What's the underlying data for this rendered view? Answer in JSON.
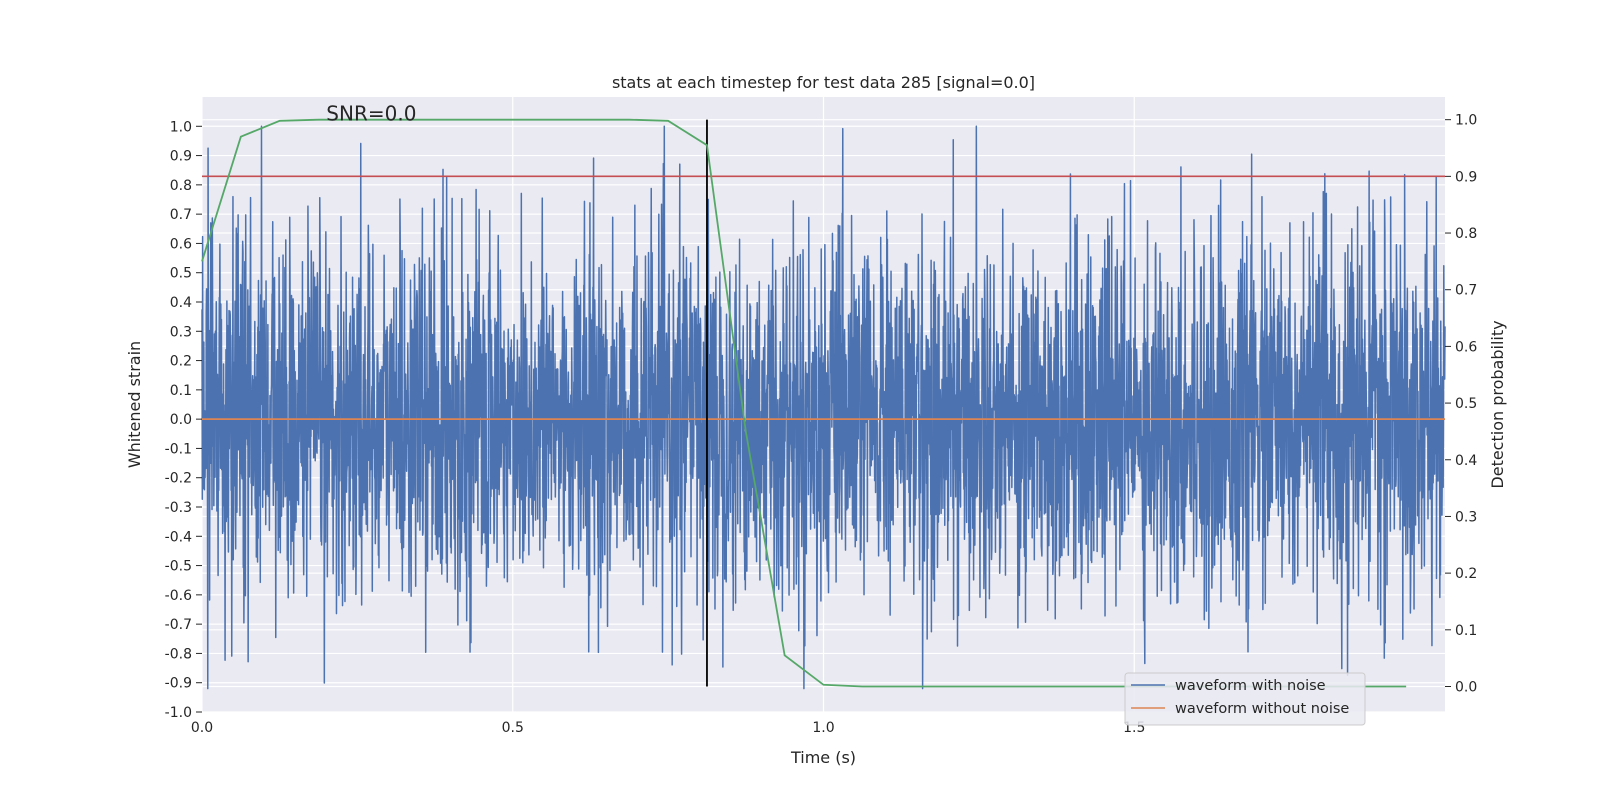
{
  "chart_data": {
    "type": "line",
    "title": "stats at each timestep for test data 285 [signal=0.0]",
    "xlabel": "Time (s)",
    "ylabel": "Whitened strain",
    "y2label": "Detection probability",
    "xlim": [
      0.0,
      2.0
    ],
    "ylim": [
      -1.0,
      1.1
    ],
    "y2lim": [
      -0.045,
      1.04
    ],
    "xticks": [
      "0.0",
      "0.5",
      "1.0",
      "1.5"
    ],
    "xtick_values": [
      0.0,
      0.5,
      1.0,
      1.5
    ],
    "yticks": [
      "1.0",
      "0.9",
      "0.8",
      "0.7",
      "0.6",
      "0.5",
      "0.4",
      "0.3",
      "0.2",
      "0.1",
      "0.0",
      "-0.1",
      "-0.2",
      "-0.3",
      "-0.4",
      "-0.5",
      "-0.6",
      "-0.7",
      "-0.8",
      "-0.9",
      "-1.0"
    ],
    "ytick_values": [
      1.0,
      0.9,
      0.8,
      0.7,
      0.6,
      0.5,
      0.4,
      0.3,
      0.2,
      0.1,
      0.0,
      -0.1,
      -0.2,
      -0.3,
      -0.4,
      -0.5,
      -0.6,
      -0.7,
      -0.8,
      -0.9,
      -1.0
    ],
    "y2ticks": [
      "1.0",
      "0.9",
      "0.8",
      "0.7",
      "0.6",
      "0.5",
      "0.4",
      "0.3",
      "0.2",
      "0.1",
      "0.0"
    ],
    "y2tick_values": [
      1.0,
      0.9,
      0.8,
      0.7,
      0.6,
      0.5,
      0.4,
      0.3,
      0.2,
      0.1,
      0.0
    ],
    "annotation": "SNR=0.0",
    "annotation_position": [
      0.2,
      1.02
    ],
    "series": [
      {
        "name": "waveform with noise",
        "color": "#4c72b0",
        "note": "whitened noise, sampled ~2048 Hz over 0-2 s, amplitude mostly within -0.9..1.0",
        "x_range": [
          0.0,
          2.0
        ],
        "samples": 4096,
        "amplitude": 0.3,
        "seed": 285
      },
      {
        "name": "waveform without noise",
        "color": "#dd8452",
        "x": [
          0.0,
          2.0
        ],
        "y": [
          0.0,
          0.0
        ]
      },
      {
        "name": "detection probability",
        "axis": "right",
        "color": "#55a868",
        "x": [
          0.0,
          0.0625,
          0.125,
          0.1875,
          0.25,
          0.3125,
          0.375,
          0.4375,
          0.5,
          0.5625,
          0.625,
          0.6875,
          0.75,
          0.8125,
          0.875,
          0.9375,
          1.0,
          1.0625,
          1.125,
          1.1875,
          1.25,
          1.3125,
          1.375,
          1.4375,
          1.5,
          1.5625,
          1.625,
          1.6875,
          1.75,
          1.8125,
          1.875,
          1.9375
        ],
        "y": [
          0.75,
          0.97,
          0.998,
          1.0,
          1.0,
          1.0,
          1.0,
          1.0,
          1.0,
          1.0,
          1.0,
          1.0,
          0.998,
          0.955,
          0.45,
          0.055,
          0.003,
          0.0,
          0.0,
          0.0,
          0.0,
          0.0,
          0.0,
          0.0,
          0.0,
          0.0,
          0.0,
          0.0,
          0.0,
          0.0,
          0.0,
          0.0
        ]
      }
    ],
    "threshold": {
      "axis": "right",
      "value": 0.9,
      "color": "#c44e52"
    },
    "vline": {
      "x": 0.8125,
      "y2_range": [
        0.0,
        1.0
      ],
      "color": "#000000"
    },
    "legend": {
      "placement": "lower-right",
      "entries": [
        {
          "label": "waveform with noise",
          "color": "#4c72b0"
        },
        {
          "label": "waveform without noise",
          "color": "#dd8452"
        }
      ]
    }
  }
}
